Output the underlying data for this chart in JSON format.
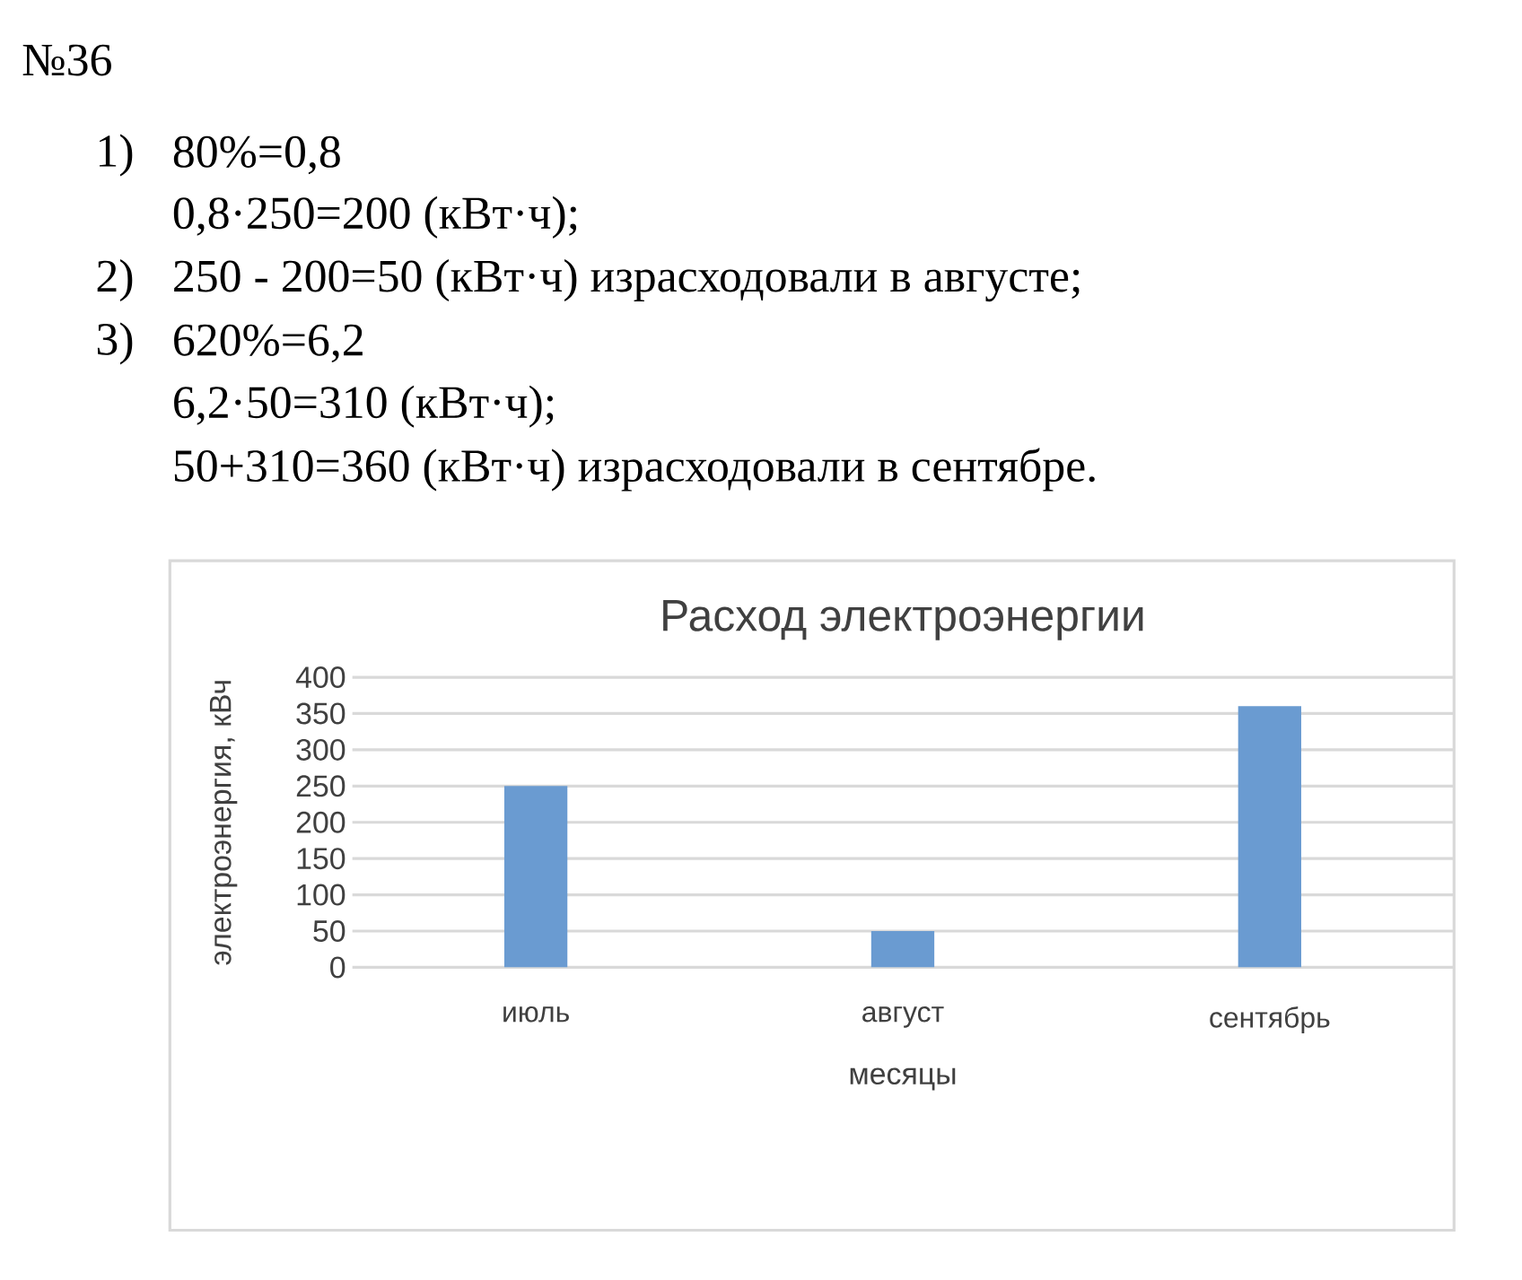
{
  "chart_data": {
    "type": "bar",
    "title": "Расход электроэнергии",
    "xlabel": "месяцы",
    "ylabel": "электроэнергия, кВч",
    "categories": [
      "июль",
      "август",
      "сентябрь"
    ],
    "values": [
      250,
      50,
      360
    ],
    "color": "#6a9bd1",
    "ylim": [
      0,
      400
    ],
    "yticks": [
      0,
      50,
      100,
      150,
      200,
      250,
      300,
      350,
      400
    ],
    "grid": "y",
    "annotations": [
      "№36",
      "1)",
      "80%=0,8",
      "0,8·250=200 (кВт·ч);",
      "2)",
      "250 - 200=50 (кВт·ч) израсходовали в августе;",
      "3)",
      "620%=6,2",
      "6,2·50=310 (кВт·ч);",
      "50+310=360 (кВт·ч) израсходовали в сентябре."
    ]
  }
}
